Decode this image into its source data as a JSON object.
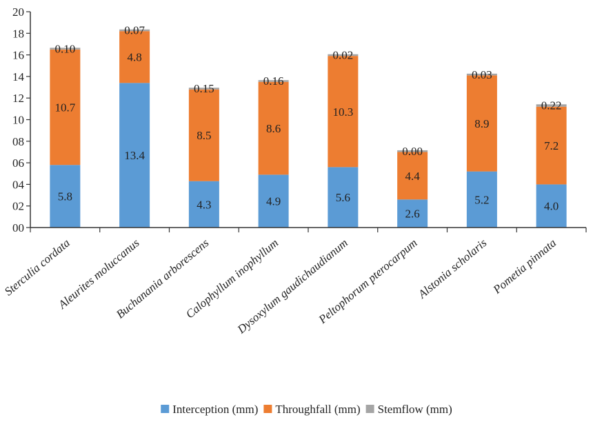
{
  "chart_data": {
    "type": "bar",
    "stacked": true,
    "title": "",
    "xlabel": "",
    "ylabel": "",
    "ylim": [
      0,
      20
    ],
    "yticks": [
      "00",
      "02",
      "04",
      "06",
      "08",
      "10",
      "12",
      "14",
      "16",
      "18",
      "20"
    ],
    "grid": false,
    "legend_position": "bottom",
    "categories": [
      "Sterculia cordata",
      "Aleurites moluccanus",
      "Buchanania arborescens",
      "Calophyllum inophyllum",
      "Dysoxylum gaudichaudianum",
      "Peltophorum pterocarpum",
      "Alstonia scholaris",
      "Pometia pinnata"
    ],
    "series": [
      {
        "name": "Interception (mm)",
        "color": "#5b9bd5",
        "values": [
          5.8,
          13.4,
          4.3,
          4.9,
          5.6,
          2.6,
          5.2,
          4.0
        ],
        "labels": [
          "5.8",
          "13.4",
          "4.3",
          "4.9",
          "5.6",
          "2.6",
          "5.2",
          "4.0"
        ]
      },
      {
        "name": "Throughfall (mm)",
        "color": "#ed7d31",
        "values": [
          10.7,
          4.8,
          8.5,
          8.6,
          10.3,
          4.4,
          8.9,
          7.2
        ],
        "labels": [
          "10.7",
          "4.8",
          "8.5",
          "8.6",
          "10.3",
          "4.4",
          "8.9",
          "7.2"
        ]
      },
      {
        "name": "Stemflow (mm)",
        "color": "#a5a5a5",
        "values": [
          0.1,
          0.07,
          0.15,
          0.16,
          0.02,
          0.0,
          0.03,
          0.22
        ],
        "labels": [
          "0.10",
          "0.07",
          "0.15",
          "0.16",
          "0.02",
          "0.00",
          "0.03",
          "0.22"
        ]
      }
    ]
  }
}
